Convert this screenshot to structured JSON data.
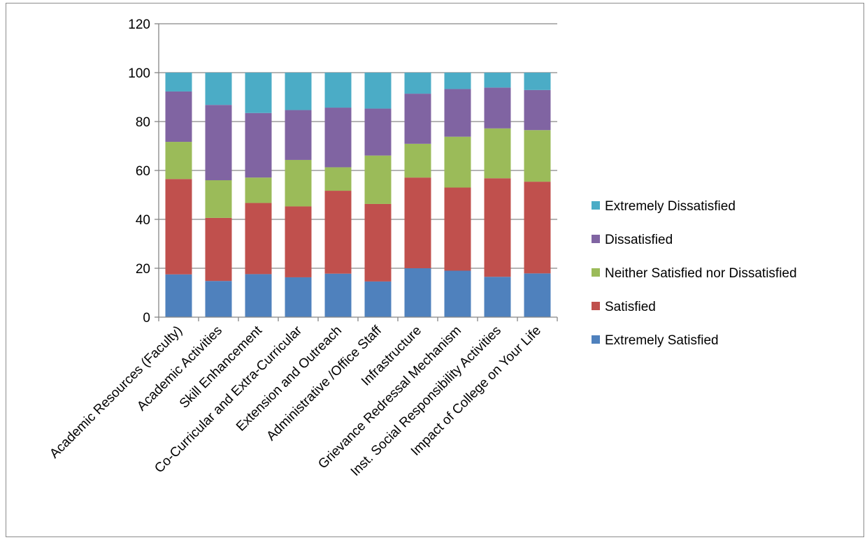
{
  "chart_data": {
    "type": "bar",
    "stacked": true,
    "categories": [
      "Academic Resources (Faculty)",
      "Academic Activities",
      "Skill Enhancement",
      "Co-Curricular and Extra-Curricular",
      "Extension and Outreach",
      "Administrative /Office Staff",
      "Infrastructure",
      "Grievance Redressal Mechanism",
      "Inst. Social Responsibility Activities",
      "Impact of College on Your Life"
    ],
    "series": [
      {
        "name": "Extremely Satisfied",
        "color": "#4F81BD",
        "values": [
          17.5,
          14.8,
          17.6,
          16.3,
          17.8,
          14.6,
          20.0,
          19.0,
          16.5,
          17.9
        ]
      },
      {
        "name": "Satisfied",
        "color": "#C0504D",
        "values": [
          39.0,
          25.8,
          29.1,
          29.0,
          33.9,
          31.7,
          37.1,
          34.0,
          40.3,
          37.5
        ]
      },
      {
        "name": "Neither Satisfied nor Dissatisfied",
        "color": "#9BBB59",
        "values": [
          15.2,
          15.4,
          10.4,
          19.0,
          9.6,
          19.8,
          13.8,
          20.8,
          20.4,
          21.1
        ]
      },
      {
        "name": "Dissatisfied",
        "color": "#8064A2",
        "values": [
          20.6,
          30.8,
          26.4,
          20.4,
          24.4,
          19.2,
          20.5,
          19.5,
          16.7,
          16.4
        ]
      },
      {
        "name": "Extremely Dissatisfied",
        "color": "#4BACC6",
        "values": [
          7.7,
          13.2,
          16.5,
          15.3,
          14.3,
          14.7,
          8.6,
          6.7,
          6.1,
          7.1
        ]
      }
    ],
    "ylim": [
      0,
      120
    ],
    "y_ticks": [
      "0",
      "20",
      "40",
      "60",
      "80",
      "100",
      "120"
    ],
    "grid": "horizontal",
    "legend_position": "right",
    "title": "",
    "xlabel": "",
    "ylabel": ""
  }
}
